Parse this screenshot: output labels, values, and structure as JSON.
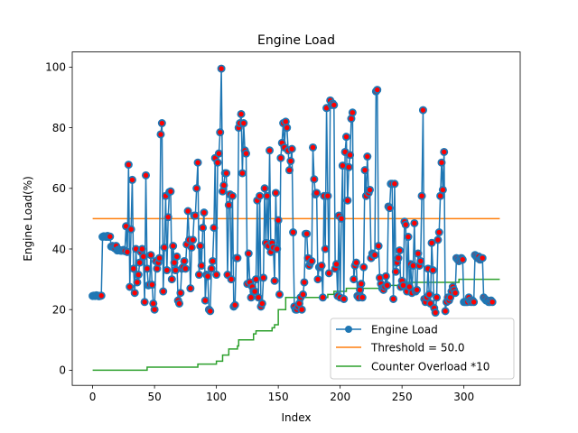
{
  "chart_data": {
    "type": "line",
    "title": "Engine Load",
    "xlabel": "Index",
    "ylabel": "Engine Load(%)",
    "xlim": [
      -16.5,
      345.5
    ],
    "ylim": [
      -5,
      105
    ],
    "xticks": [
      0,
      50,
      100,
      150,
      200,
      250,
      300
    ],
    "yticks": [
      0,
      20,
      40,
      60,
      80,
      100
    ],
    "legend_position": "lower right",
    "grid": false,
    "colors": {
      "engine_load": "#1f77b4",
      "marker_face": "#ff0000",
      "marker_edge": "#1f77b4",
      "threshold": "#ff7f0e",
      "counter": "#2ca02c"
    },
    "series": [
      {
        "name": "Engine Load",
        "style": "line-marker",
        "color": "#1f77b4",
        "x_start": 0,
        "values": [
          24.5,
          24.6,
          24.5,
          24.7,
          24.6,
          24.4,
          24.5,
          24.6,
          44.0,
          44.2,
          44.1,
          44.0,
          44.3,
          44.0,
          44.1,
          40.8,
          41.0,
          40.5,
          40.2,
          41.0,
          39.5,
          39.8,
          39.6,
          39.4,
          39.5,
          39.7,
          39.3,
          47.5,
          39.0,
          67.8,
          27.5,
          46.5,
          62.8,
          33.5,
          25.5,
          40.0,
          29.0,
          31.5,
          35.5,
          39.0,
          40.0,
          37.5,
          22.5,
          64.3,
          33.5,
          28.0,
          28.2,
          38.0,
          28.2,
          22.0,
          20.0,
          36.0,
          33.5,
          35.5,
          37.0,
          77.8,
          81.5,
          26.0,
          40.5,
          57.5,
          33.0,
          50.5,
          58.8,
          59.0,
          30.0,
          41.0,
          35.5,
          33.0,
          37.5,
          23.0,
          22.0,
          25.5,
          33.5,
          34.0,
          36.0,
          33.5,
          41.5,
          52.5,
          43.0,
          27.0,
          40.5,
          43.0,
          51.0,
          51.0,
          60.0,
          68.5,
          31.5,
          41.0,
          34.5,
          47.0,
          52.0,
          23.0,
          31.5,
          31.0,
          20.0,
          19.5,
          33.5,
          36.0,
          47.0,
          70.0,
          31.5,
          68.5,
          71.5,
          78.5,
          99.5,
          59.0,
          61.0,
          65.0,
          65.0,
          31.5,
          54.5,
          58.0,
          30.0,
          57.5,
          21.0,
          21.5,
          37.0,
          37.0,
          80.0,
          81.5,
          84.5,
          65.0,
          81.5,
          72.5,
          71.5,
          28.5,
          38.5,
          29.0,
          24.0,
          27.5,
          26.0,
          26.0,
          30.0,
          56.0,
          24.0,
          57.5,
          21.0,
          22.0,
          30.5,
          60.0,
          42.0,
          57.5,
          41.0,
          72.5,
          39.0,
          42.0,
          40.5,
          29.5,
          58.5,
          40.0,
          49.5,
          25.0,
          70.0,
          75.0,
          81.5,
          73.5,
          82.0,
          80.0,
          72.5,
          66.0,
          69.0,
          73.0,
          45.5,
          21.0,
          20.0,
          20.0,
          21.0,
          22.0,
          24.0,
          20.0,
          25.0,
          29.0,
          45.0,
          45.0,
          37.0,
          34.5,
          35.5,
          36.0,
          73.5,
          63.0,
          58.0,
          58.5,
          30.0,
          34.0,
          34.0,
          34.5,
          24.0,
          57.5,
          40.0,
          86.5,
          57.5,
          32.0,
          89.0,
          87.5,
          88.0,
          87.5,
          33.5,
          35.0,
          24.5,
          51.0,
          24.0,
          50.0,
          67.5,
          23.5,
          72.0,
          77.0,
          56.0,
          67.0,
          71.0,
          83.0,
          85.0,
          30.0,
          34.5,
          35.5,
          24.5,
          24.0,
          26.5,
          28.5,
          24.0,
          34.0,
          66.0,
          57.5,
          70.5,
          58.5,
          59.5,
          37.0,
          38.5,
          38.0,
          38.0,
          92.0,
          92.5,
          41.0,
          30.5,
          28.5,
          27.0,
          26.5,
          27.5,
          31.0,
          28.0,
          54.0,
          53.5,
          61.5,
          61.5,
          23.5,
          61.5,
          32.5,
          35.5,
          37.0,
          39.5,
          27.5,
          29.5,
          28.0,
          49.0,
          48.0,
          26.0,
          44.0,
          27.5,
          35.0,
          25.5,
          34.5,
          48.5,
          26.0,
          26.5,
          38.5,
          34.5,
          36.0,
          57.5,
          85.8,
          23.5,
          22.5,
          24.0,
          33.5,
          25.0,
          22.0,
          42.0,
          33.0,
          20.5,
          19.0,
          24.0,
          43.0,
          45.5,
          57.5,
          68.5,
          59.5,
          72.0,
          19.5,
          22.5,
          24.0,
          23.0,
          24.0,
          26.0,
          27.5,
          26.5,
          25.5,
          37.0,
          36.5,
          36.0,
          36.5,
          37.0,
          36.5,
          22.5,
          22.5,
          22.5,
          22.5,
          24.0,
          23.0,
          22.5,
          23.0,
          22.5,
          38.0,
          37.5,
          37.0,
          37.5,
          36.5,
          37.0,
          37.0,
          24.0,
          23.5,
          23.0,
          23.0,
          22.5,
          22.5,
          23.0,
          22.5
        ]
      },
      {
        "name": "Threshold = 50.0",
        "style": "hline",
        "color": "#ff7f0e",
        "x": [
          0,
          329
        ],
        "values": [
          50.0,
          50.0
        ]
      },
      {
        "name": "Counter Overload *10",
        "style": "step",
        "color": "#2ca02c",
        "x": [
          0,
          44,
          44,
          85,
          85,
          100,
          100,
          105,
          105,
          110,
          110,
          117,
          117,
          118,
          118,
          130,
          130,
          132,
          132,
          145,
          145,
          147,
          147,
          150,
          150,
          156,
          156,
          190,
          190,
          195,
          195,
          205,
          205,
          235,
          235,
          253,
          253,
          282,
          282,
          296,
          296,
          329
        ],
        "values": [
          0,
          0,
          1,
          1,
          2,
          2,
          3,
          3,
          5,
          5,
          7,
          7,
          8,
          8,
          10,
          10,
          12,
          12,
          13,
          13,
          14,
          14,
          15,
          15,
          20,
          20,
          24,
          24,
          25,
          25,
          26,
          26,
          27,
          27,
          28,
          28,
          29,
          29,
          29,
          29,
          30,
          30
        ]
      }
    ]
  }
}
